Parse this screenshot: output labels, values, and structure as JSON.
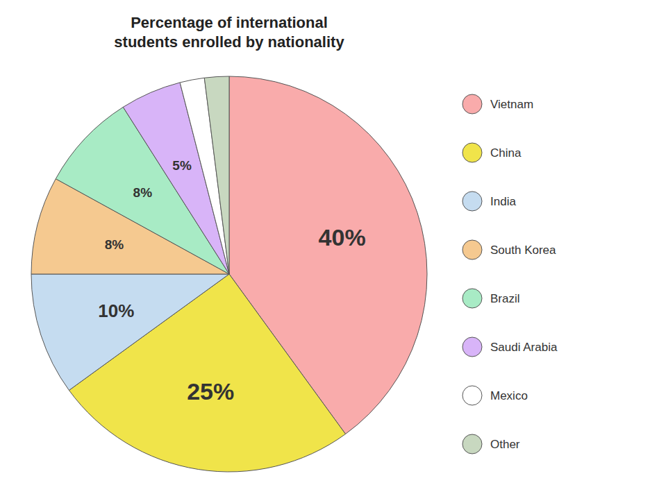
{
  "chart_data": {
    "type": "pie",
    "title": "Percentage of international\nstudents enrolled by nationality",
    "categories": [
      "Vietnam",
      "China",
      "India",
      "South Korea",
      "Brazil",
      "Saudi Arabia",
      "Mexico",
      "Other"
    ],
    "values": [
      40,
      25,
      10,
      8,
      8,
      5,
      2,
      2
    ],
    "value_labels": [
      "40%",
      "25%",
      "10%",
      "8%",
      "8%",
      "5%",
      null,
      null
    ],
    "colors": [
      "#F9ABAB",
      "#F0E44A",
      "#C5DCF0",
      "#F5C990",
      "#A8EBC5",
      "#D8B4F8",
      "#FFFFFF",
      "#C8D8C0"
    ],
    "data_labels": true,
    "legend": "right"
  }
}
